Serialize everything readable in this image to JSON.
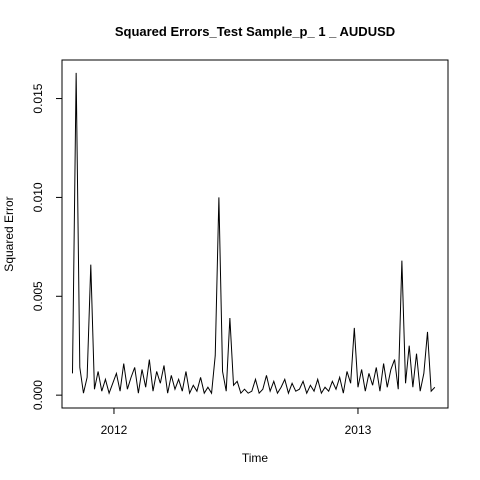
{
  "chart_data": {
    "type": "line",
    "title": "Squared Errors_Test Sample_p_ 1 _ AUDUSD",
    "x_label": "Time",
    "y_label": "Squared Error",
    "color": "#000000",
    "xlim": [
      2011.787,
      2013.369
    ],
    "ylim": [
      -0.00065,
      0.01695
    ],
    "xticks": [
      2012,
      2013
    ],
    "yticks": [
      {
        "value": 0,
        "label": "0.000"
      },
      {
        "value": 0.005,
        "label": "0.005"
      },
      {
        "value": 0.01,
        "label": "0.010"
      },
      {
        "value": 0.015,
        "label": "0.015"
      }
    ],
    "x": [
      2011.83,
      2011.845,
      2011.86,
      2011.875,
      2011.89,
      2011.905,
      2011.92,
      2011.935,
      2011.95,
      2011.965,
      2011.98,
      2011.995,
      2012.01,
      2012.025,
      2012.04,
      2012.055,
      2012.07,
      2012.085,
      2012.1,
      2012.115,
      2012.13,
      2012.145,
      2012.16,
      2012.175,
      2012.19,
      2012.205,
      2012.22,
      2012.235,
      2012.25,
      2012.265,
      2012.28,
      2012.295,
      2012.31,
      2012.325,
      2012.34,
      2012.355,
      2012.37,
      2012.385,
      2012.4,
      2012.415,
      2012.43,
      2012.445,
      2012.46,
      2012.475,
      2012.49,
      2012.505,
      2012.52,
      2012.535,
      2012.55,
      2012.565,
      2012.58,
      2012.595,
      2012.61,
      2012.625,
      2012.64,
      2012.655,
      2012.67,
      2012.685,
      2012.7,
      2012.715,
      2012.73,
      2012.745,
      2012.76,
      2012.775,
      2012.79,
      2012.805,
      2012.82,
      2012.835,
      2012.85,
      2012.865,
      2012.88,
      2012.895,
      2012.91,
      2012.925,
      2012.94,
      2012.955,
      2012.97,
      2012.985,
      2013,
      2013.015,
      2013.03,
      2013.045,
      2013.06,
      2013.075,
      2013.09,
      2013.105,
      2013.12,
      2013.135,
      2013.15,
      2013.165,
      2013.18,
      2013.195,
      2013.21,
      2013.225,
      2013.24,
      2013.255,
      2013.27,
      2013.285,
      2013.3,
      2013.315
    ],
    "values": [
      0.0011,
      0.0163,
      0.0014,
      0.0001,
      0.0009,
      0.0066,
      0.0003,
      0.0012,
      0.0002,
      0.0008,
      0.0001,
      0.0006,
      0.0011,
      0.0002,
      0.0016,
      0.0003,
      0.0009,
      0.0014,
      0.0001,
      0.0013,
      0.0004,
      0.0018,
      0.0002,
      0.0012,
      0.0006,
      0.0015,
      0.0001,
      0.001,
      0.0003,
      0.0008,
      0.0002,
      0.0012,
      0.0001,
      0.0005,
      0.0002,
      0.0009,
      0.0001,
      0.0004,
      0.0001,
      0.002,
      0.01,
      0.0012,
      0.0002,
      0.0039,
      0.0005,
      0.0007,
      0.0001,
      0.0003,
      0.0001,
      0.0002,
      0.0008,
      0.0001,
      0.0003,
      0.001,
      0.0002,
      0.0007,
      0.0001,
      0.0004,
      0.0008,
      0.0001,
      0.0006,
      0.0002,
      0.0003,
      0.0007,
      0.0001,
      0.0005,
      0.0002,
      0.0008,
      0.0001,
      0.0004,
      0.0002,
      0.0007,
      0.0003,
      0.0009,
      0.0001,
      0.0012,
      0.0006,
      0.0034,
      0.0004,
      0.0013,
      0.0002,
      0.0011,
      0.0005,
      0.0014,
      0.0002,
      0.0016,
      0.0004,
      0.0013,
      0.0018,
      0.0003,
      0.0068,
      0.0006,
      0.0025,
      0.0004,
      0.0021,
      0.0002,
      0.0011,
      0.0032,
      0.0002,
      0.0004
    ]
  }
}
